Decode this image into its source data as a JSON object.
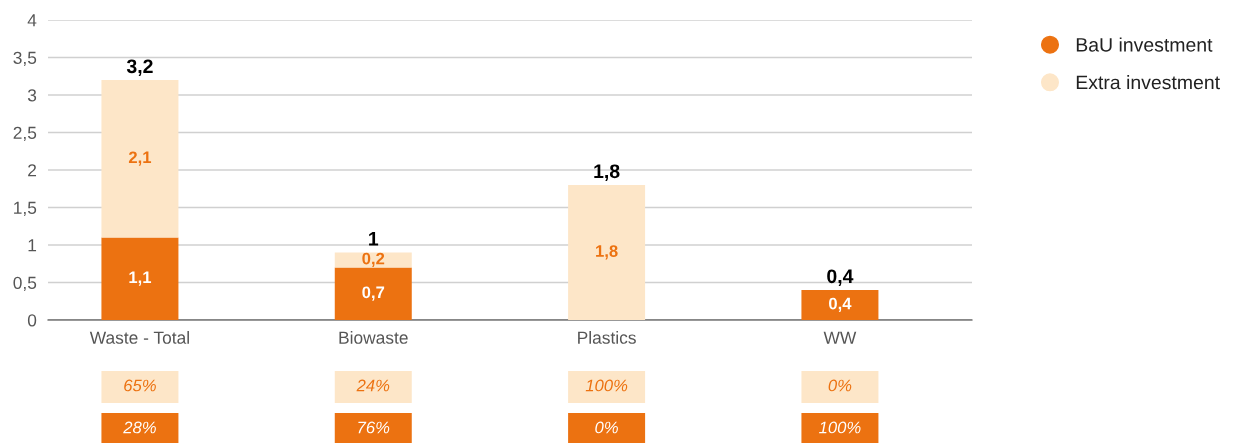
{
  "chart_data": {
    "type": "bar",
    "stacked": true,
    "categories": [
      "Waste - Total",
      "Biowaste",
      "Plastics",
      "WW"
    ],
    "series": [
      {
        "name": "BaU investment",
        "color": "#ec7211",
        "values": [
          1.1,
          0.7,
          0,
          0.4
        ],
        "value_labels": [
          "1,1",
          "0,7",
          null,
          "0,4"
        ]
      },
      {
        "name": "Extra investment",
        "color": "#fde6c8",
        "values": [
          2.1,
          0.2,
          1.8,
          0
        ],
        "value_labels": [
          "2,1",
          "0,2",
          "1,8",
          null
        ]
      }
    ],
    "totals": [
      "3,2",
      "1",
      "1,8",
      "0,4"
    ],
    "ylim": [
      0,
      4
    ],
    "yticks": [
      0,
      {
        "value": 0.5,
        "label": "0,5"
      },
      1,
      {
        "value": 1.5,
        "label": "1,5"
      },
      2,
      {
        "value": 2.5,
        "label": "2,5"
      },
      3,
      {
        "value": 3.5,
        "label": "3,5"
      },
      4
    ],
    "grid": "y",
    "legend": "right",
    "marker": "circle",
    "annotations": [
      "65%",
      "24%",
      "100%",
      "0%",
      "28%",
      "76%",
      "0%",
      "100%"
    ]
  }
}
